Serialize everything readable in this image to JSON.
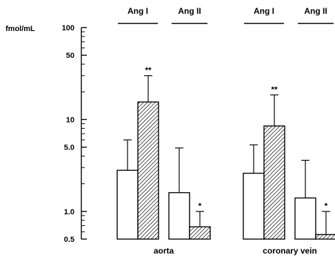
{
  "chart_data": {
    "type": "bar",
    "y_scale": "log",
    "ylim": [
      0.5,
      100
    ],
    "ylabel": "fmol/mL",
    "y_ticks": [
      {
        "value": 100,
        "label": "100"
      },
      {
        "value": 50,
        "label": "50"
      },
      {
        "value": 10,
        "label": "10"
      },
      {
        "value": 5,
        "label": "5.0"
      },
      {
        "value": 1,
        "label": "1.0"
      },
      {
        "value": 0.5,
        "label": "0.5"
      }
    ],
    "minor_ticks": [
      90,
      80,
      70,
      60,
      40,
      30,
      20,
      9,
      8,
      7,
      6,
      4,
      3,
      2,
      0.9,
      0.8,
      0.7,
      0.6
    ],
    "grid": false,
    "fills": {
      "open": "#ffffff",
      "hatched": "#000000"
    },
    "groups": [
      {
        "label": "aorta",
        "subgroups": [
          {
            "label": "Ang I",
            "bars": [
              {
                "fill": "open",
                "value": 2.8,
                "error_upper": 6.0,
                "sig": ""
              },
              {
                "fill": "hatched",
                "value": 15.5,
                "error_upper": 30.0,
                "sig": "**"
              }
            ]
          },
          {
            "label": "Ang II",
            "bars": [
              {
                "fill": "open",
                "value": 1.6,
                "error_upper": 4.9,
                "sig": ""
              },
              {
                "fill": "hatched",
                "value": 0.68,
                "error_upper": 1.0,
                "sig": "*"
              }
            ]
          }
        ]
      },
      {
        "label": "coronary vein",
        "subgroups": [
          {
            "label": "Ang I",
            "bars": [
              {
                "fill": "open",
                "value": 2.6,
                "error_upper": 5.3,
                "sig": ""
              },
              {
                "fill": "hatched",
                "value": 8.5,
                "error_upper": 18.5,
                "sig": "**"
              }
            ]
          },
          {
            "label": "Ang II",
            "bars": [
              {
                "fill": "open",
                "value": 1.4,
                "error_upper": 3.6,
                "sig": ""
              },
              {
                "fill": "hatched",
                "value": 0.56,
                "error_upper": 1.0,
                "sig": "*"
              }
            ]
          }
        ]
      }
    ]
  }
}
